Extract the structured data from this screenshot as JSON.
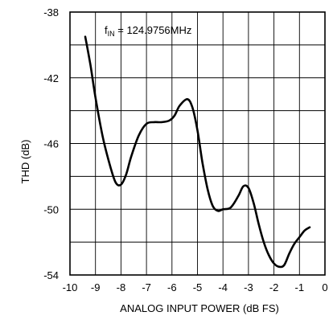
{
  "chart_data": {
    "type": "line",
    "title": "",
    "xlabel": "ANALOG INPUT POWER (dB FS)",
    "ylabel": "THD (dB)",
    "xlim": [
      -10,
      0
    ],
    "ylim": [
      -54,
      -38
    ],
    "x_ticks": [
      "-10",
      "-9",
      "-8",
      "-7",
      "-6",
      "-5",
      "-4",
      "-3",
      "-2",
      "-1",
      "0"
    ],
    "y_ticks": [
      "-38",
      "-42",
      "-46",
      "-50",
      "-54"
    ],
    "grid": true,
    "annotation": {
      "main": "f",
      "sub": "IN",
      "rest": " = 124.9756MHz"
    },
    "series": [
      {
        "x": [
          -9.4,
          -9.2,
          -9.0,
          -8.7,
          -8.4,
          -8.2,
          -8.0,
          -7.8,
          -7.6,
          -7.3,
          -7.0,
          -6.7,
          -6.4,
          -6.1,
          -5.9,
          -5.7,
          -5.4,
          -5.2,
          -5.0,
          -4.8,
          -4.6,
          -4.4,
          -4.2,
          -4.0,
          -3.7,
          -3.4,
          -3.2,
          -3.0,
          -2.8,
          -2.6,
          -2.4,
          -2.2,
          -2.0,
          -1.8,
          -1.6,
          -1.4,
          -1.2,
          -1.0,
          -0.8,
          -0.6
        ],
        "y": [
          -39.5,
          -41.2,
          -43.2,
          -45.7,
          -47.5,
          -48.4,
          -48.5,
          -47.9,
          -46.8,
          -45.5,
          -44.8,
          -44.7,
          -44.7,
          -44.6,
          -44.3,
          -43.7,
          -43.3,
          -43.8,
          -45.2,
          -47.2,
          -48.8,
          -49.8,
          -50.1,
          -50.0,
          -49.9,
          -49.2,
          -48.6,
          -48.7,
          -49.6,
          -50.9,
          -52.0,
          -52.8,
          -53.3,
          -53.5,
          -53.4,
          -52.7,
          -52.1,
          -51.7,
          -51.3,
          -51.1
        ]
      }
    ]
  }
}
